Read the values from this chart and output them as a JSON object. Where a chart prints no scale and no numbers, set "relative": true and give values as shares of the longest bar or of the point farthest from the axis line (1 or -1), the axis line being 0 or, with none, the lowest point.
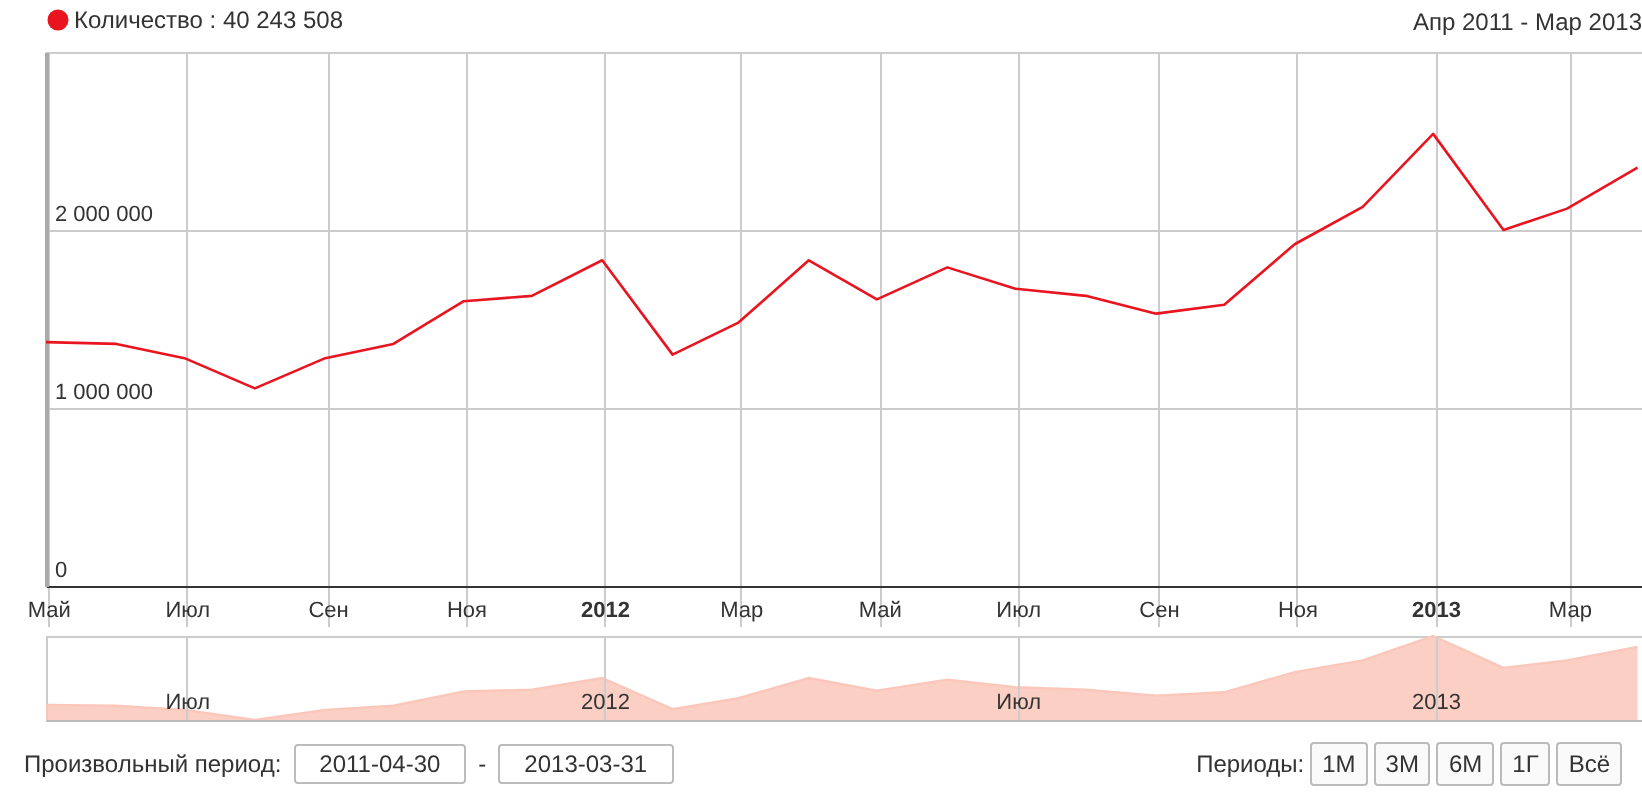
{
  "chart_data": [
    {
      "type": "line",
      "title": "Апр 2011 - Мар 2013",
      "x": [
        "2011-04-30",
        "2011-05-31",
        "2011-06-30",
        "2011-07-31",
        "2011-08-31",
        "2011-09-30",
        "2011-10-31",
        "2011-11-30",
        "2011-12-31",
        "2012-01-31",
        "2012-02-29",
        "2012-03-31",
        "2012-04-30",
        "2012-05-31",
        "2012-06-30",
        "2012-07-31",
        "2012-08-31",
        "2012-09-30",
        "2012-10-31",
        "2012-11-30",
        "2012-12-31",
        "2013-01-31",
        "2013-02-28",
        "2013-03-31"
      ],
      "series": [
        {
          "name": "Количество : 40 243 508",
          "color": "#e8141f",
          "values": [
            1370000,
            1360000,
            1280000,
            1110000,
            1280000,
            1360000,
            1600000,
            1630000,
            1830000,
            1300000,
            1480000,
            1830000,
            1610000,
            1790000,
            1670000,
            1630000,
            1530000,
            1580000,
            1920000,
            2130000,
            2540000,
            2000000,
            2120000,
            2350000
          ]
        }
      ],
      "xlim": [
        "2011-04-30",
        "2013-04-02"
      ],
      "xticks": [
        {
          "value": "2011-05-01",
          "label": "Май"
        },
        {
          "value": "2011-07-01",
          "label": "Июл"
        },
        {
          "value": "2011-09-01",
          "label": "Сен"
        },
        {
          "value": "2011-11-01",
          "label": "Ноя"
        },
        {
          "value": "2012-01-01",
          "label": "2012"
        },
        {
          "value": "2012-03-01",
          "label": "Мар"
        },
        {
          "value": "2012-05-01",
          "label": "Май"
        },
        {
          "value": "2012-07-01",
          "label": "Июл"
        },
        {
          "value": "2012-09-01",
          "label": "Сен"
        },
        {
          "value": "2012-11-01",
          "label": "Ноя"
        },
        {
          "value": "2013-01-01",
          "label": "2013"
        },
        {
          "value": "2013-03-01",
          "label": "Мар"
        }
      ],
      "ylim": [
        0,
        3000000
      ],
      "yticks": [
        0,
        {
          "value": 1000000,
          "label": "1 000 000"
        },
        {
          "value": 2000000,
          "label": "2 000 000"
        }
      ],
      "grid": true,
      "legend": "top left"
    },
    {
      "type": "area",
      "relative": true,
      "x": [
        "2011-04-30",
        "2011-05-31",
        "2011-06-30",
        "2011-07-31",
        "2011-08-31",
        "2011-09-30",
        "2011-10-31",
        "2011-11-30",
        "2011-12-31",
        "2012-01-31",
        "2012-02-29",
        "2012-03-31",
        "2012-04-30",
        "2012-05-31",
        "2012-06-30",
        "2012-07-31",
        "2012-08-31",
        "2012-09-30",
        "2012-10-31",
        "2012-11-30",
        "2012-12-31",
        "2013-01-31",
        "2013-02-28",
        "2013-03-31"
      ],
      "series": [
        {
          "color": "#fbc7bb",
          "values": [
            0.18,
            0.17,
            0.12,
            0,
            0.12,
            0.17,
            0.34,
            0.36,
            0.5,
            0.13,
            0.26,
            0.5,
            0.35,
            0.48,
            0.39,
            0.36,
            0.29,
            0.33,
            0.57,
            0.71,
            1,
            0.62,
            0.71,
            0.87
          ]
        }
      ],
      "xlim": [
        "2011-04-30",
        "2013-04-02"
      ],
      "xticks": [
        {
          "value": "2011-07-01",
          "label": "Июл"
        },
        {
          "value": "2012-01-01",
          "label": "2012"
        },
        {
          "value": "2012-07-01",
          "label": "Июл"
        },
        {
          "value": "2013-01-01",
          "label": "2013"
        }
      ],
      "grid": "x",
      "annotations": [
        "Произвольный период:",
        "2011-04-30",
        "-",
        "2013-03-31",
        "Периоды:",
        "1М",
        "3М",
        "6М",
        "1Г",
        "Всё"
      ]
    }
  ]
}
